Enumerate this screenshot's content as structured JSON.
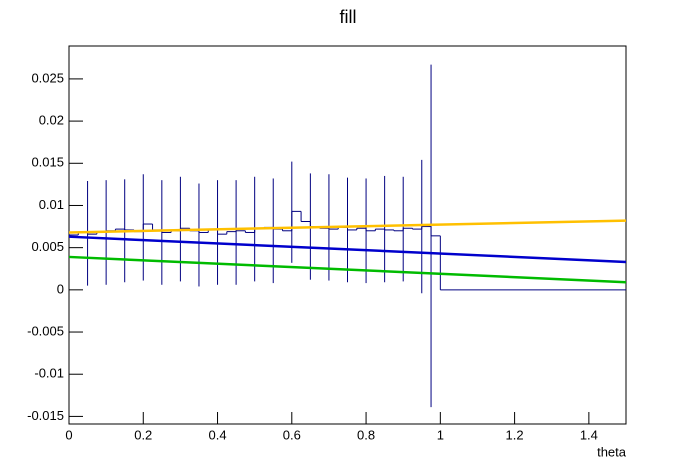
{
  "chart_data": {
    "type": "histogram",
    "title": "fill",
    "x_label": "theta",
    "color": "#000080",
    "bins": [
      0,
      0.025,
      0.05,
      0.075,
      0.1,
      0.125,
      0.15,
      0.175,
      0.2,
      0.225,
      0.25,
      0.275,
      0.3,
      0.325,
      0.35,
      0.375,
      0.4,
      0.425,
      0.45,
      0.475,
      0.5,
      0.525,
      0.55,
      0.575,
      0.6,
      0.625,
      0.65,
      0.675,
      0.7,
      0.725,
      0.75,
      0.775,
      0.8,
      0.825,
      0.85,
      0.875,
      0.9,
      0.925,
      0.95,
      0.975,
      1.0,
      1.5
    ],
    "counts": [
      0.0065,
      0.0068,
      0.0066,
      0.0069,
      0.007,
      0.0072,
      0.0071,
      0.0069,
      0.0078,
      0.0071,
      0.0068,
      0.007,
      0.0073,
      0.007,
      0.0068,
      0.0072,
      0.0066,
      0.0069,
      0.007,
      0.0068,
      0.0073,
      0.0074,
      0.0072,
      0.007,
      0.0093,
      0.0081,
      0.0075,
      0.0073,
      0.0072,
      0.0074,
      0.0071,
      0.0073,
      0.007,
      0.0072,
      0.0071,
      0.007,
      0.0073,
      0.0072,
      0.0075,
      0.0064,
      0
    ],
    "errorbars": {
      "color": "#000080",
      "x": [
        0.05,
        0.1,
        0.15,
        0.2,
        0.25,
        0.3,
        0.35,
        0.4,
        0.45,
        0.5,
        0.55,
        0.6,
        0.65,
        0.7,
        0.75,
        0.8,
        0.85,
        0.9,
        0.95,
        0.975
      ],
      "values": [
        0.0067,
        0.0068,
        0.007,
        0.0074,
        0.0068,
        0.0072,
        0.0065,
        0.0068,
        0.0068,
        0.0072,
        0.007,
        0.0092,
        0.0075,
        0.0074,
        0.0071,
        0.007,
        0.0072,
        0.0072,
        0.0075,
        0.0064
      ],
      "errors": [
        0.0062,
        0.0062,
        0.0061,
        0.0063,
        0.0062,
        0.0062,
        0.0061,
        0.0062,
        0.0062,
        0.0062,
        0.0062,
        0.006,
        0.0063,
        0.0063,
        0.0062,
        0.0062,
        0.0063,
        0.0062,
        0.0079,
        0.0203
      ]
    },
    "lines": [
      {
        "color": "#ffc000",
        "x": [
          0,
          1.5
        ],
        "values": [
          0.0068,
          0.0082
        ]
      },
      {
        "color": "#0000cc",
        "x": [
          0,
          1.5
        ],
        "values": [
          0.0063,
          0.0033
        ]
      },
      {
        "color": "#00bb00",
        "x": [
          0,
          1.5
        ],
        "values": [
          0.0039,
          0.0009
        ]
      }
    ],
    "xlim": [
      0,
      1.5
    ],
    "ylim": [
      -0.0159,
      0.0289
    ],
    "xticks": [
      0,
      0.2,
      0.4,
      0.6,
      0.8,
      1,
      1.2,
      1.4
    ],
    "yticks": [
      -0.015,
      -0.01,
      -0.005,
      0,
      0.005,
      0.01,
      0.015,
      0.02,
      0.025
    ]
  }
}
